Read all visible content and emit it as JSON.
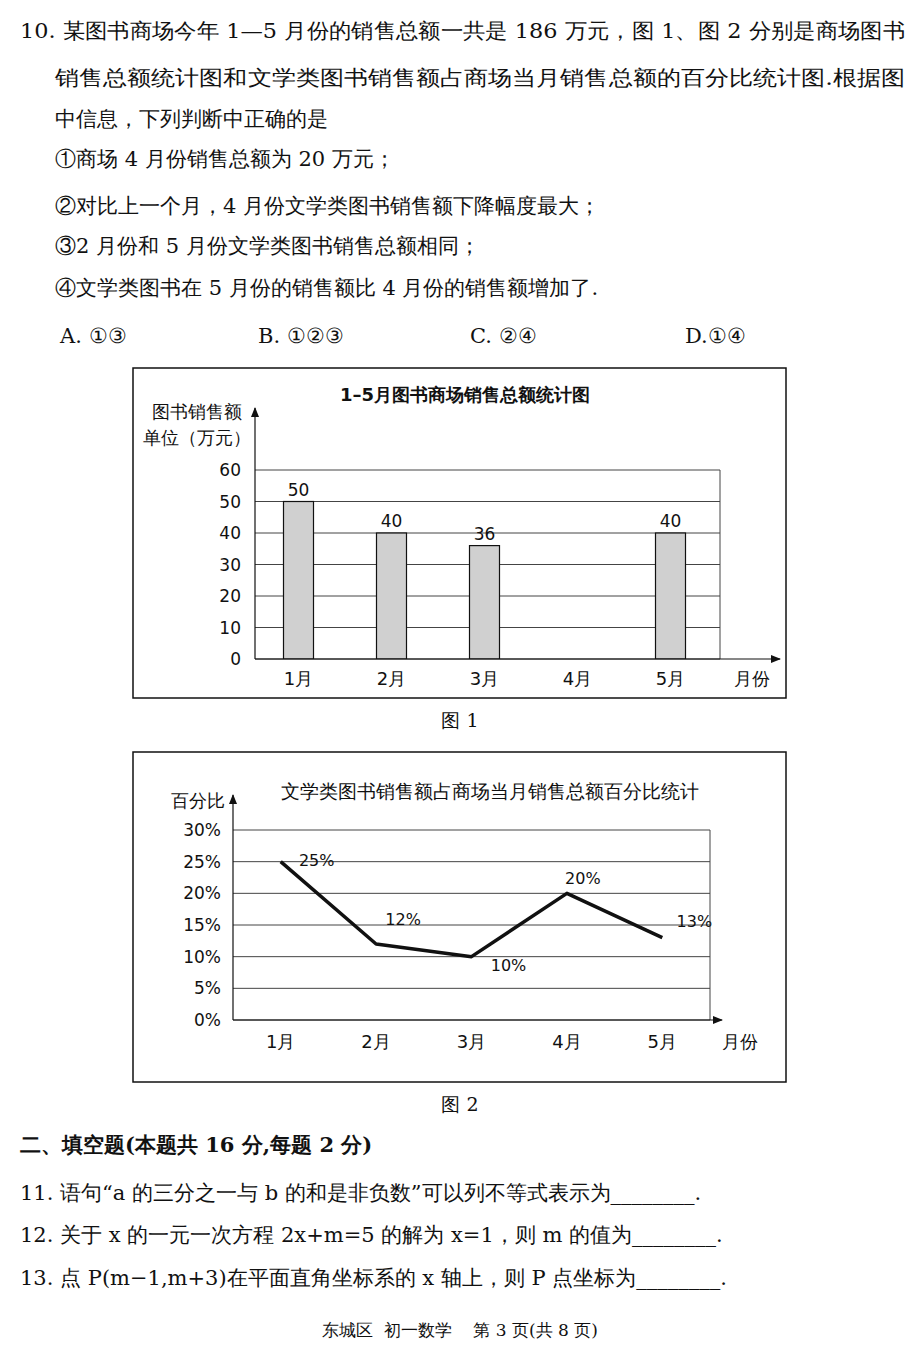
{
  "document": {
    "question_10": {
      "stem": [
        "10. 某图书商场今年 1—5 月份的销售总额一共是 186 万元，图 1、图 2 分别是商场图书",
        "销售总额统计图和文学类图书销售额占商场当月销售总额的百分比统计图.根据图",
        "中信息，下列判断中正确的是"
      ],
      "statements": [
        "①商场 4 月份销售总额为 20 万元；",
        "②对比上一个月，4 月份文学类图书销售额下降幅度最大；",
        "③2 月份和 5 月份文学类图书销售总额相同；",
        "④文学类图书在 5 月份的销售额比 4 月份的销售额增加了."
      ],
      "options": [
        "A. ①③",
        "B. ①②③",
        "C. ②④",
        "D.①④"
      ]
    },
    "captions": [
      "图 1",
      "图 2"
    ],
    "section_title": "二、填空题(本题共 16 分,每题 2 分)",
    "questions": [
      "11. 语句“a 的三分之一与 b 的和是非负数”可以列不等式表示为________.",
      "12. 关于 x 的一元一次方程 2x+m=5 的解为 x=1，则 m 的值为________.",
      "13. 点 P(m−1,m+3)在平面直角坐标系的 x 轴上，则 P 点坐标为________."
    ],
    "footer": "东城区  初一数学    第 3 页(共 8 页)"
  },
  "chart_data": [
    {
      "type": "bar",
      "title": "1–5月图书商场销售总额统计图",
      "y_label": [
        "图书销售额",
        "单位（万元）"
      ],
      "x_label": "月份",
      "categories": [
        "1月",
        "2月",
        "3月",
        "4月",
        "5月"
      ],
      "values": [
        50,
        40,
        36,
        null,
        40
      ],
      "color": "#d0d0d0",
      "ylim": [
        0,
        60
      ],
      "yticks": [
        0,
        10,
        20,
        30,
        40,
        50,
        60
      ],
      "grid": true,
      "data_labels": true
    },
    {
      "type": "line",
      "title": "文学类图书销售额占商场当月销售总额百分比统计",
      "y_label": "百分比",
      "x_label": "月份",
      "categories": [
        "1月",
        "2月",
        "3月",
        "4月",
        "5月"
      ],
      "values": [
        25,
        12,
        10,
        20,
        13
      ],
      "value_labels": [
        "25%",
        "12%",
        "10%",
        "20%",
        "13%"
      ],
      "color": "#111111",
      "ylim": [
        0,
        30
      ],
      "yticks": [
        {
          "value": 0,
          "label": "0%"
        },
        {
          "value": 5,
          "label": "5%"
        },
        {
          "value": 10,
          "label": "10%"
        },
        {
          "value": 15,
          "label": "15%"
        },
        {
          "value": 20,
          "label": "20%"
        },
        {
          "value": 25,
          "label": "25%"
        },
        {
          "value": 30,
          "label": "30%"
        }
      ],
      "grid": true,
      "data_labels": true
    }
  ]
}
